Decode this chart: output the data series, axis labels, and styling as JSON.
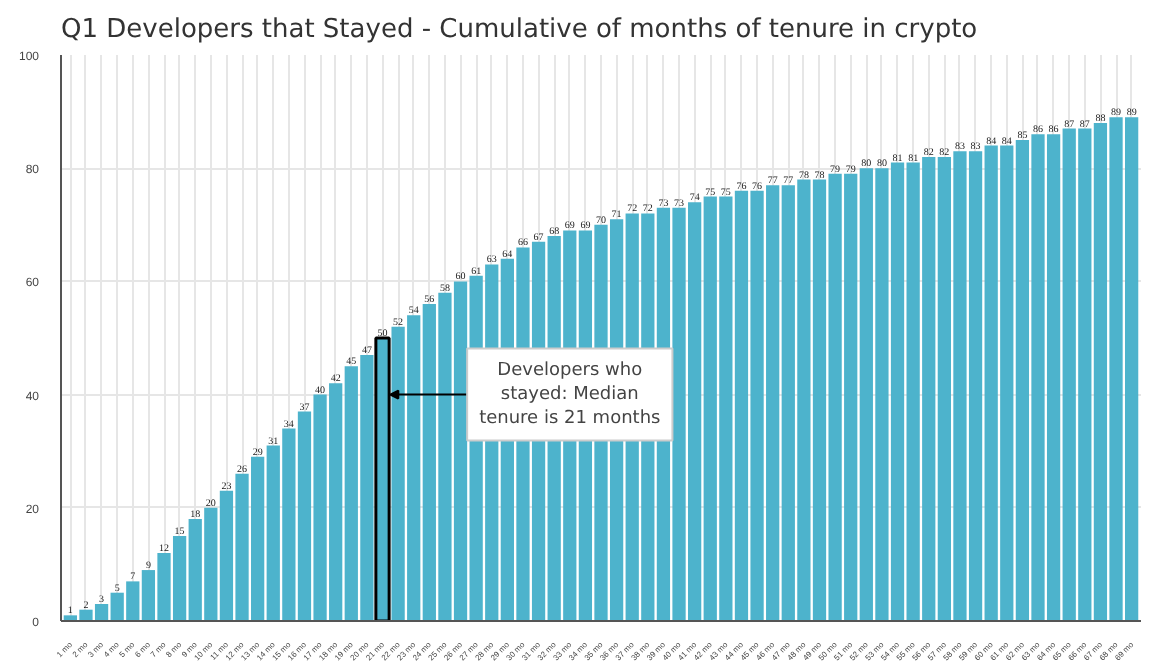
{
  "chart_data": {
    "type": "bar",
    "title": "Q1 Developers that Stayed - Cumulative of months of tenure in crypto",
    "categories": [
      "1 mo",
      "2 mo",
      "3 mo",
      "4 mo",
      "5 mo",
      "6 mo",
      "7 mo",
      "8 mo",
      "9 mo",
      "10 mo",
      "11 mo",
      "12 mo",
      "13 mo",
      "14 mo",
      "15 mo",
      "16 mo",
      "17 mo",
      "18 mo",
      "19 mo",
      "20 mo",
      "21 mo",
      "22 mo",
      "23 mo",
      "24 mo",
      "25 mo",
      "26 mo",
      "27 mo",
      "28 mo",
      "29 mo",
      "30 mo",
      "31 mo",
      "32 mo",
      "33 mo",
      "34 mo",
      "35 mo",
      "36 mo",
      "37 mo",
      "38 mo",
      "39 mo",
      "40 mo",
      "41 mo",
      "42 mo",
      "43 mo",
      "44 mo",
      "45 mo",
      "46 mo",
      "47 mo",
      "48 mo",
      "49 mo",
      "50 mo",
      "51 mo",
      "52 mo",
      "53 mo",
      "54 mo",
      "55 mo",
      "56 mo",
      "57 mo",
      "58 mo",
      "59 mo",
      "60 mo",
      "61 mo",
      "62 mo",
      "63 mo",
      "64 mo",
      "65 mo",
      "66 mo",
      "67 mo",
      "68 mo",
      "69 mo"
    ],
    "values": [
      1,
      2,
      3,
      5,
      7,
      9,
      12,
      15,
      18,
      20,
      23,
      26,
      29,
      31,
      34,
      37,
      40,
      42,
      45,
      47,
      50,
      52,
      54,
      56,
      58,
      60,
      61,
      63,
      64,
      66,
      67,
      68,
      69,
      69,
      70,
      71,
      72,
      72,
      73,
      73,
      74,
      75,
      75,
      76,
      76,
      77,
      77,
      78,
      78,
      79,
      79,
      80,
      80,
      81,
      81,
      82,
      82,
      83,
      83,
      84,
      84,
      85,
      86,
      86,
      87,
      87,
      88,
      89,
      89
    ],
    "color": "#4db3cc",
    "ylim": [
      0,
      100
    ],
    "yticks": [
      0,
      20,
      40,
      60,
      80,
      100
    ],
    "grid": true,
    "data_labels": true,
    "annotations": [
      {
        "text": "Developers who stayed: Median tenure is 21 months",
        "x": "21 mo",
        "y": 40
      }
    ]
  }
}
